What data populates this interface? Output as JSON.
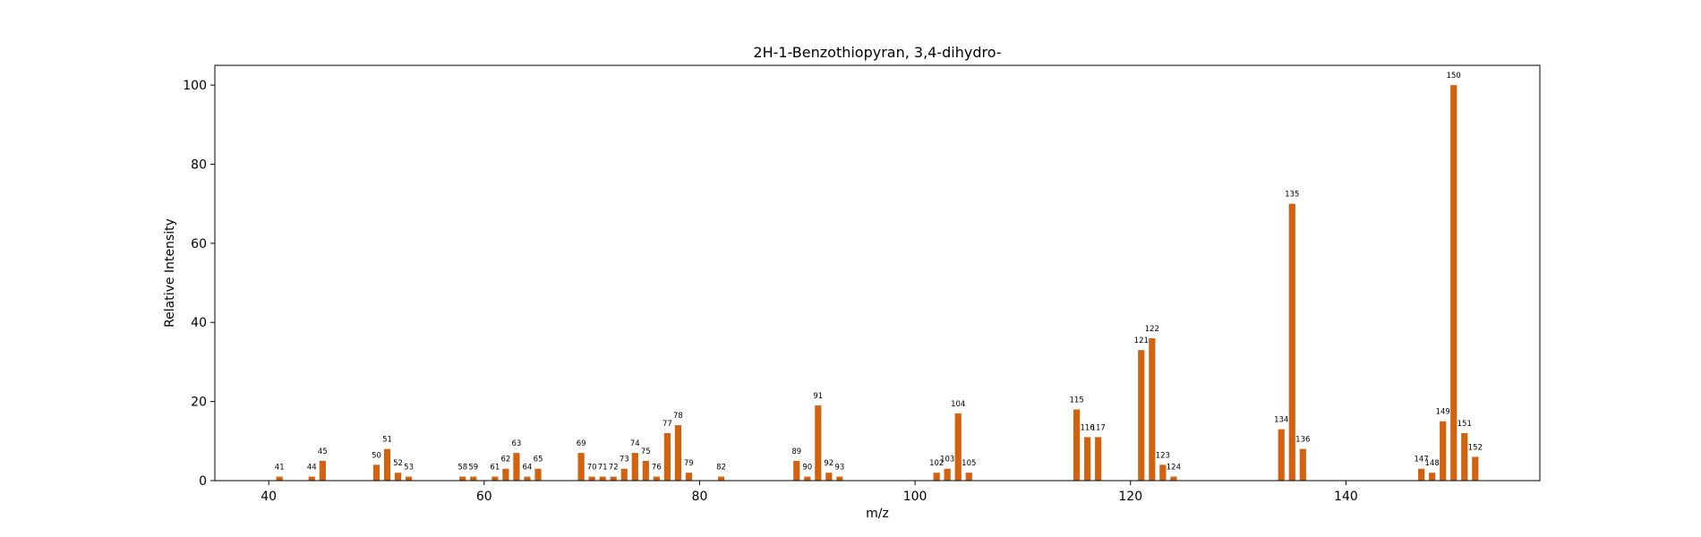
{
  "chart_data": {
    "type": "bar",
    "title": "2H-1-Benzothiopyran, 3,4-dihydro-",
    "xlabel": "m/z",
    "ylabel": "Relative Intensity",
    "xlim": [
      35,
      158
    ],
    "ylim": [
      0,
      105
    ],
    "xticks": [
      40,
      60,
      80,
      100,
      120,
      140
    ],
    "yticks": [
      0,
      20,
      40,
      60,
      80,
      100
    ],
    "bar_color": "#d2620f",
    "grid": false,
    "x": [
      41,
      44,
      45,
      50,
      51,
      52,
      53,
      58,
      59,
      61,
      62,
      63,
      64,
      65,
      69,
      70,
      71,
      72,
      73,
      74,
      75,
      76,
      77,
      78,
      79,
      82,
      89,
      90,
      91,
      92,
      93,
      102,
      103,
      104,
      105,
      115,
      116,
      117,
      121,
      122,
      123,
      124,
      134,
      135,
      136,
      147,
      148,
      149,
      150,
      151,
      152
    ],
    "values": [
      1,
      1,
      5,
      4,
      8,
      2,
      1,
      1,
      1,
      1,
      3,
      7,
      1,
      3,
      7,
      1,
      1,
      1,
      3,
      7,
      5,
      1,
      12,
      14,
      2,
      1,
      5,
      1,
      19,
      2,
      1,
      2,
      3,
      17,
      2,
      18,
      11,
      11,
      33,
      36,
      4,
      1,
      13,
      70,
      8,
      3,
      2,
      15,
      100,
      12,
      6
    ],
    "labels": [
      "41",
      "44",
      "45",
      "50",
      "51",
      "52",
      "53",
      "58",
      "59",
      "61",
      "62",
      "63",
      "64",
      "65",
      "69",
      "70",
      "71",
      "72",
      "73",
      "74",
      "75",
      "76",
      "77",
      "78",
      "79",
      "82",
      "89",
      "90",
      "91",
      "92",
      "93",
      "102",
      "103",
      "104",
      "105",
      "115",
      "116",
      "117",
      "121",
      "122",
      "123",
      "124",
      "134",
      "135",
      "136",
      "147",
      "148",
      "149",
      "150",
      "151",
      "152"
    ]
  }
}
